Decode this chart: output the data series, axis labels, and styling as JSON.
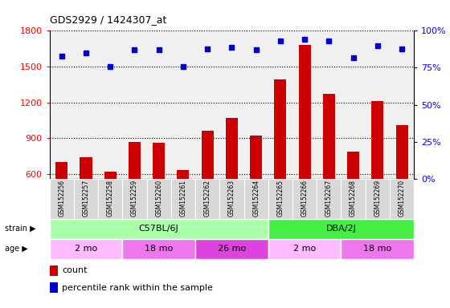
{
  "title": "GDS2929 / 1424307_at",
  "samples": [
    "GSM152256",
    "GSM152257",
    "GSM152258",
    "GSM152259",
    "GSM152260",
    "GSM152261",
    "GSM152262",
    "GSM152263",
    "GSM152264",
    "GSM152265",
    "GSM152266",
    "GSM152267",
    "GSM152268",
    "GSM152269",
    "GSM152270"
  ],
  "counts": [
    700,
    740,
    620,
    870,
    860,
    635,
    960,
    1070,
    920,
    1390,
    1680,
    1270,
    790,
    1210,
    1010
  ],
  "percentiles": [
    83,
    85,
    76,
    87,
    87,
    76,
    88,
    89,
    87,
    93,
    94,
    93,
    82,
    90,
    88
  ],
  "ylim_left": [
    560,
    1800
  ],
  "ylim_right": [
    0,
    100
  ],
  "yticks_left": [
    600,
    900,
    1200,
    1500,
    1800
  ],
  "yticks_right": [
    0,
    25,
    50,
    75,
    100
  ],
  "bar_color": "#cc0000",
  "dot_color": "#0000cc",
  "bar_bottom": 560,
  "strain_groups": [
    {
      "label": "C57BL/6J",
      "start": 0,
      "end": 9,
      "color": "#aaffaa"
    },
    {
      "label": "DBA/2J",
      "start": 9,
      "end": 15,
      "color": "#44ee44"
    }
  ],
  "age_groups": [
    {
      "label": "2 mo",
      "start": 0,
      "end": 3,
      "color": "#ffbbff"
    },
    {
      "label": "18 mo",
      "start": 3,
      "end": 6,
      "color": "#ee77ee"
    },
    {
      "label": "26 mo",
      "start": 6,
      "end": 9,
      "color": "#dd44dd"
    },
    {
      "label": "2 mo",
      "start": 9,
      "end": 12,
      "color": "#ffbbff"
    },
    {
      "label": "18 mo",
      "start": 12,
      "end": 15,
      "color": "#ee77ee"
    }
  ],
  "background_color": "#ffffff",
  "plot_bg_color": "#f0f0f0",
  "grid_color": "#888888",
  "xtick_bg": "#d8d8d8"
}
